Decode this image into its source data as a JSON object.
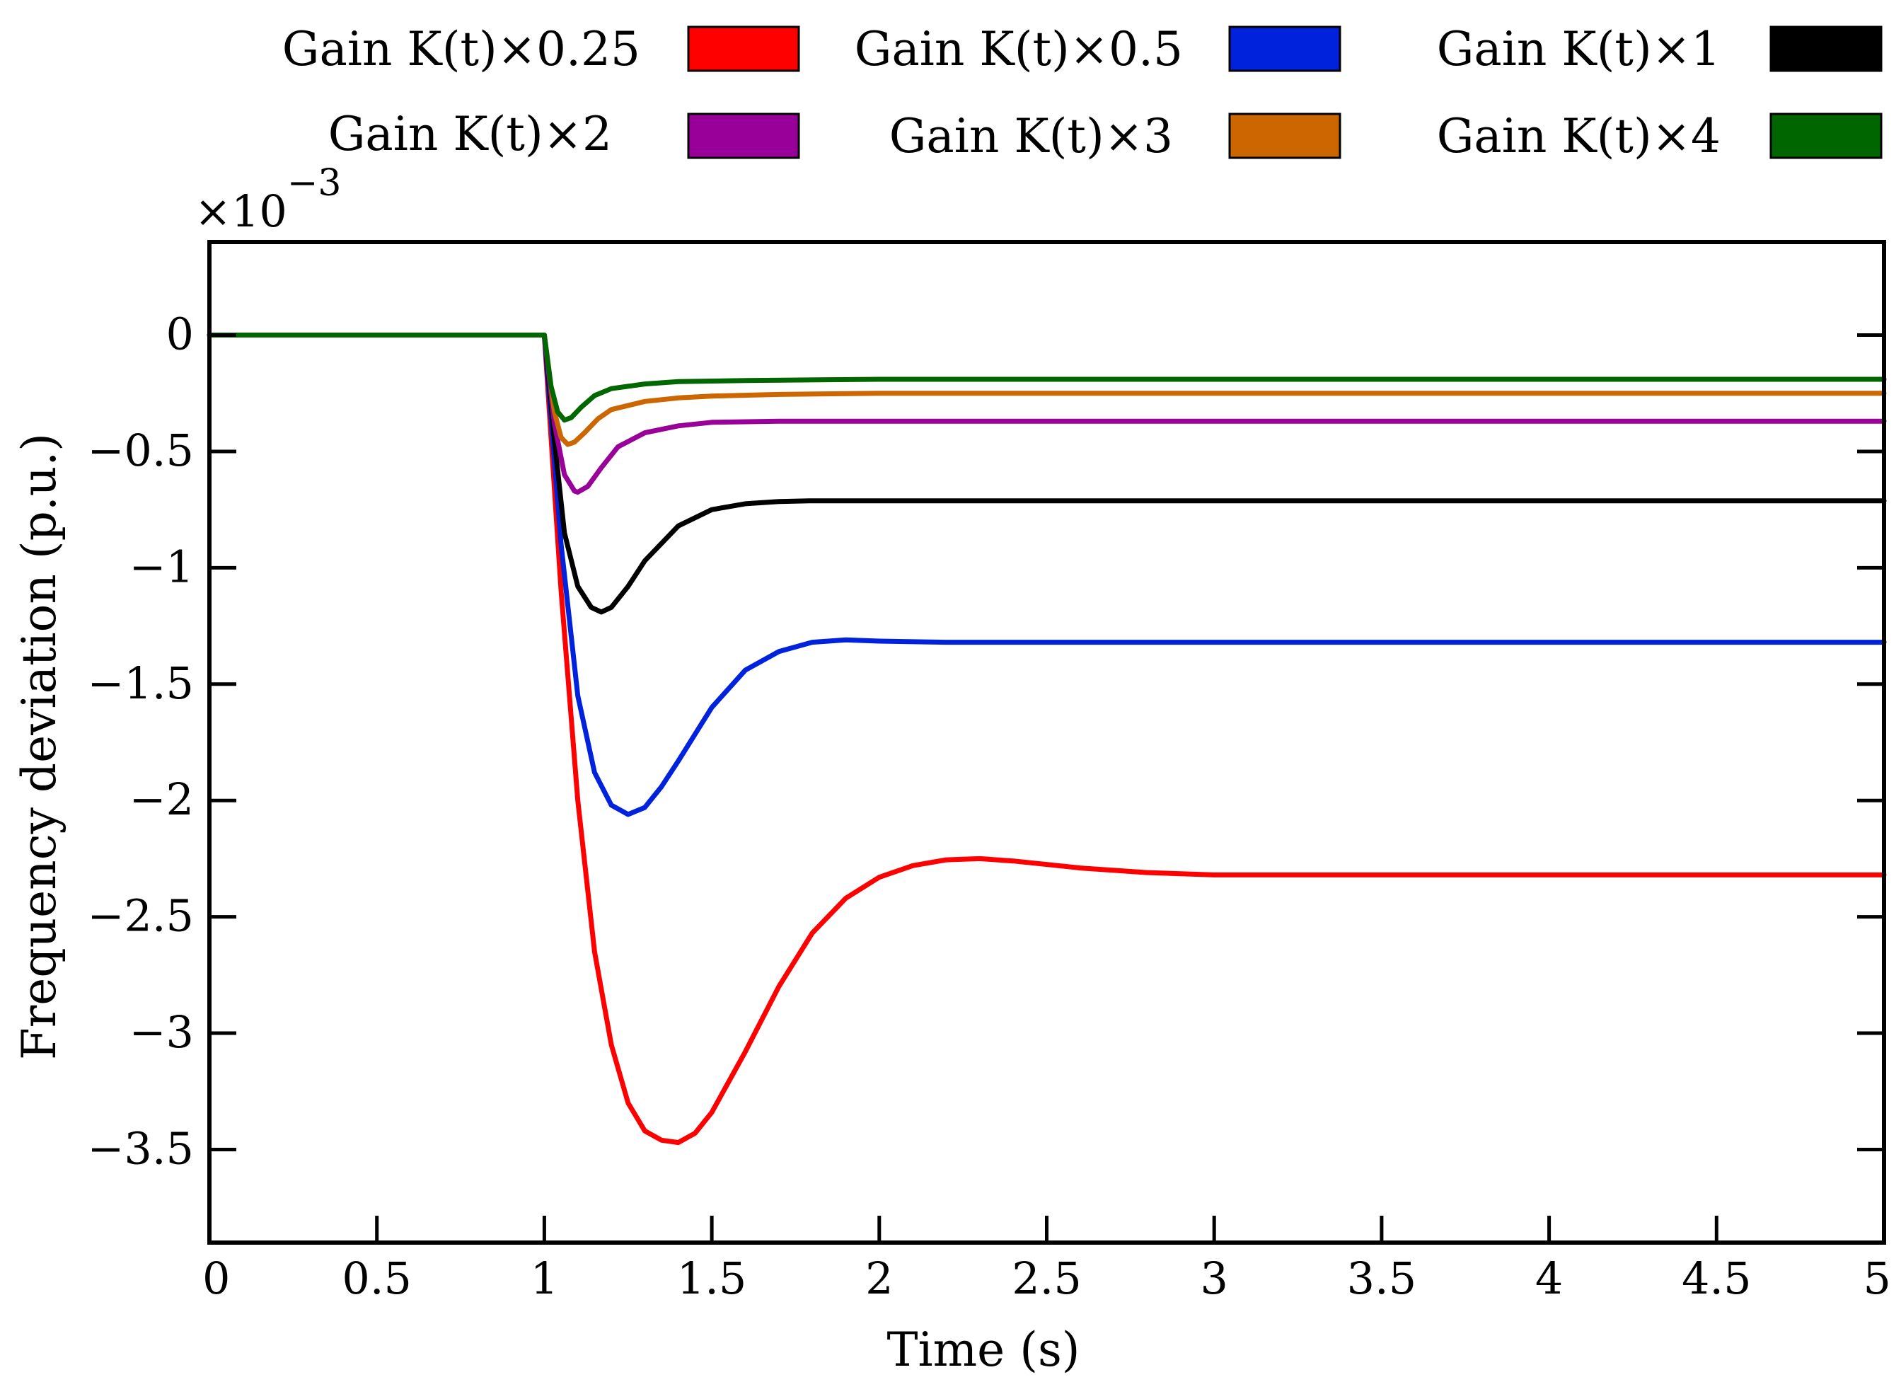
{
  "chart_data": {
    "type": "line",
    "title": "",
    "xlabel": "Time (s)",
    "ylabel": "Frequency deviation (p.u.)",
    "y_multiplier_prefix": "×10",
    "y_multiplier_exponent": "−3",
    "xlim": [
      0,
      5
    ],
    "ylim": [
      -3.9,
      0.4
    ],
    "xticks": [
      0,
      0.5,
      1,
      1.5,
      2,
      2.5,
      3,
      3.5,
      4,
      4.5,
      5
    ],
    "xtick_labels": [
      "0",
      "0.5",
      "1",
      "1.5",
      "2",
      "2.5",
      "3",
      "3.5",
      "4",
      "4.5",
      "5"
    ],
    "yticks": [
      0,
      -0.5,
      -1,
      -1.5,
      -2,
      -2.5,
      -3,
      -3.5
    ],
    "ytick_labels": [
      "0",
      "−0.5",
      "−1",
      "−1.5",
      "−2",
      "−2.5",
      "−3",
      "−3.5"
    ],
    "grid": false,
    "legend_position": "top",
    "series": [
      {
        "name": "Gain K(t)×0.25",
        "color": "#ff0000",
        "x": [
          0,
          1.0,
          1.05,
          1.1,
          1.15,
          1.2,
          1.25,
          1.3,
          1.35,
          1.4,
          1.45,
          1.5,
          1.6,
          1.7,
          1.8,
          1.9,
          2.0,
          2.1,
          2.2,
          2.3,
          2.4,
          2.6,
          2.8,
          3.0,
          3.5,
          4.0,
          4.5,
          5.0
        ],
        "y": [
          0,
          0,
          -1.1,
          -2.0,
          -2.65,
          -3.05,
          -3.3,
          -3.42,
          -3.46,
          -3.47,
          -3.43,
          -3.34,
          -3.08,
          -2.8,
          -2.57,
          -2.42,
          -2.33,
          -2.28,
          -2.255,
          -2.25,
          -2.26,
          -2.29,
          -2.31,
          -2.32,
          -2.32,
          -2.32,
          -2.32,
          -2.32
        ]
      },
      {
        "name": "Gain K(t)×0.5",
        "color": "#0022dd",
        "x": [
          0,
          1.0,
          1.05,
          1.1,
          1.15,
          1.2,
          1.25,
          1.3,
          1.35,
          1.4,
          1.5,
          1.6,
          1.7,
          1.8,
          1.9,
          2.0,
          2.2,
          2.5,
          3.0,
          4.0,
          5.0
        ],
        "y": [
          0,
          0,
          -0.9,
          -1.55,
          -1.88,
          -2.02,
          -2.06,
          -2.03,
          -1.94,
          -1.83,
          -1.6,
          -1.44,
          -1.36,
          -1.32,
          -1.31,
          -1.315,
          -1.32,
          -1.32,
          -1.32,
          -1.32,
          -1.32
        ]
      },
      {
        "name": "Gain K(t)×1",
        "color": "#000000",
        "x": [
          0,
          1.0,
          1.03,
          1.06,
          1.1,
          1.14,
          1.17,
          1.2,
          1.25,
          1.3,
          1.4,
          1.5,
          1.6,
          1.7,
          1.8,
          2.0,
          3.0,
          4.0,
          5.0
        ],
        "y": [
          0,
          0,
          -0.45,
          -0.85,
          -1.08,
          -1.17,
          -1.19,
          -1.17,
          -1.08,
          -0.97,
          -0.82,
          -0.75,
          -0.725,
          -0.715,
          -0.712,
          -0.712,
          -0.712,
          -0.712,
          -0.712
        ]
      },
      {
        "name": "Gain K(t)×2",
        "color": "#990099",
        "x": [
          0,
          1.0,
          1.03,
          1.06,
          1.09,
          1.1,
          1.13,
          1.17,
          1.22,
          1.3,
          1.4,
          1.5,
          1.7,
          2.0,
          3.0,
          4.0,
          5.0
        ],
        "y": [
          0,
          0,
          -0.38,
          -0.6,
          -0.67,
          -0.675,
          -0.65,
          -0.57,
          -0.48,
          -0.42,
          -0.39,
          -0.375,
          -0.37,
          -0.37,
          -0.37,
          -0.37,
          -0.37
        ]
      },
      {
        "name": "Gain K(t)×3",
        "color": "#cc6600",
        "x": [
          0,
          1.0,
          1.03,
          1.05,
          1.07,
          1.09,
          1.12,
          1.16,
          1.2,
          1.3,
          1.4,
          1.5,
          1.7,
          2.0,
          3.0,
          4.0,
          5.0
        ],
        "y": [
          0,
          0,
          -0.33,
          -0.44,
          -0.47,
          -0.46,
          -0.42,
          -0.36,
          -0.32,
          -0.285,
          -0.27,
          -0.262,
          -0.255,
          -0.25,
          -0.25,
          -0.25,
          -0.25
        ]
      },
      {
        "name": "Gain K(t)×4",
        "color": "#006600",
        "x": [
          0,
          1.0,
          1.02,
          1.04,
          1.06,
          1.08,
          1.11,
          1.15,
          1.2,
          1.3,
          1.4,
          1.6,
          2.0,
          3.0,
          4.0,
          5.0
        ],
        "y": [
          0,
          0,
          -0.22,
          -0.33,
          -0.365,
          -0.355,
          -0.31,
          -0.26,
          -0.23,
          -0.21,
          -0.2,
          -0.195,
          -0.19,
          -0.19,
          -0.19,
          -0.19
        ]
      }
    ]
  }
}
